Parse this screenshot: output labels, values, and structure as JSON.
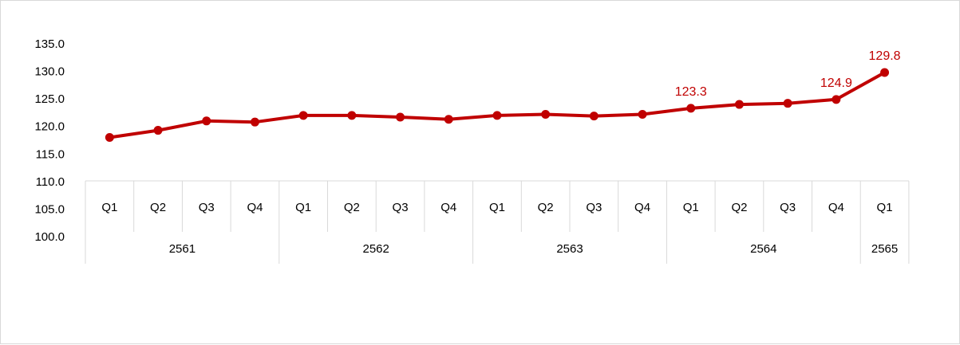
{
  "chart_data": {
    "type": "line",
    "title": "",
    "xlabel": "",
    "ylabel": "",
    "ylim": [
      100,
      135
    ],
    "yticks": [
      "100.0",
      "105.0",
      "110.0",
      "115.0",
      "120.0",
      "125.0",
      "130.0",
      "135.0"
    ],
    "grid": false,
    "legend": "none",
    "color": "#c00000",
    "categories": [
      "Q1",
      "Q2",
      "Q3",
      "Q4",
      "Q1",
      "Q2",
      "Q3",
      "Q4",
      "Q1",
      "Q2",
      "Q3",
      "Q4",
      "Q1",
      "Q2",
      "Q3",
      "Q4",
      "Q1"
    ],
    "groups": [
      {
        "label": "2561",
        "count": 4
      },
      {
        "label": "2562",
        "count": 4
      },
      {
        "label": "2563",
        "count": 4
      },
      {
        "label": "2564",
        "count": 4
      },
      {
        "label": "2565",
        "count": 1
      }
    ],
    "series": [
      {
        "values": [
          118.0,
          119.3,
          121.0,
          120.8,
          122.0,
          122.0,
          121.7,
          121.3,
          122.0,
          122.2,
          121.9,
          122.2,
          123.3,
          124.0,
          124.2,
          124.9,
          129.8
        ]
      }
    ],
    "data_labels": [
      {
        "index": 12,
        "text": "123.3"
      },
      {
        "index": 15,
        "text": "124.9"
      },
      {
        "index": 16,
        "text": "129.8"
      }
    ]
  }
}
